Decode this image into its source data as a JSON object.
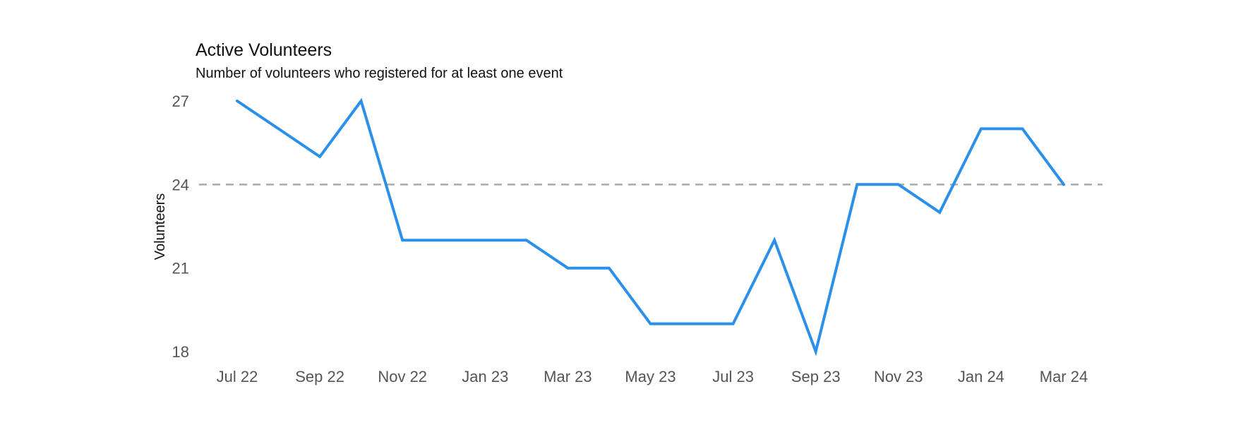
{
  "chart_data": {
    "type": "line",
    "title": "Active Volunteers",
    "subtitle": "Number of volunteers who registered for at least one event",
    "xlabel": "",
    "ylabel": "Volunteers",
    "x": [
      "Jul 22",
      "Aug 22",
      "Sep 22",
      "Oct 22",
      "Nov 22",
      "Dec 22",
      "Jan 23",
      "Feb 23",
      "Mar 23",
      "Apr 23",
      "May 23",
      "Jun 23",
      "Jul 23",
      "Aug 23",
      "Sep 23",
      "Oct 23",
      "Nov 23",
      "Dec 23",
      "Jan 24",
      "Feb 24",
      "Mar 24"
    ],
    "x_tick_labels": [
      "Jul 22",
      "Sep 22",
      "Nov 22",
      "Jan 23",
      "Mar 23",
      "May 23",
      "Jul 23",
      "Sep 23",
      "Nov 23",
      "Jan 24",
      "Mar 24"
    ],
    "series": [
      {
        "values": [
          27,
          26,
          25,
          27,
          22,
          22,
          22,
          22,
          21,
          21,
          19,
          19,
          19,
          22,
          18,
          24,
          24,
          23,
          26,
          26,
          24
        ],
        "color": "#2b90ea"
      }
    ],
    "reference_line": {
      "value": 24,
      "style": "dashed",
      "color": "#aaaaaa"
    },
    "yticks": [
      18,
      21,
      24,
      27
    ],
    "ylim": [
      18,
      27
    ],
    "grid": false,
    "legend": "none"
  }
}
